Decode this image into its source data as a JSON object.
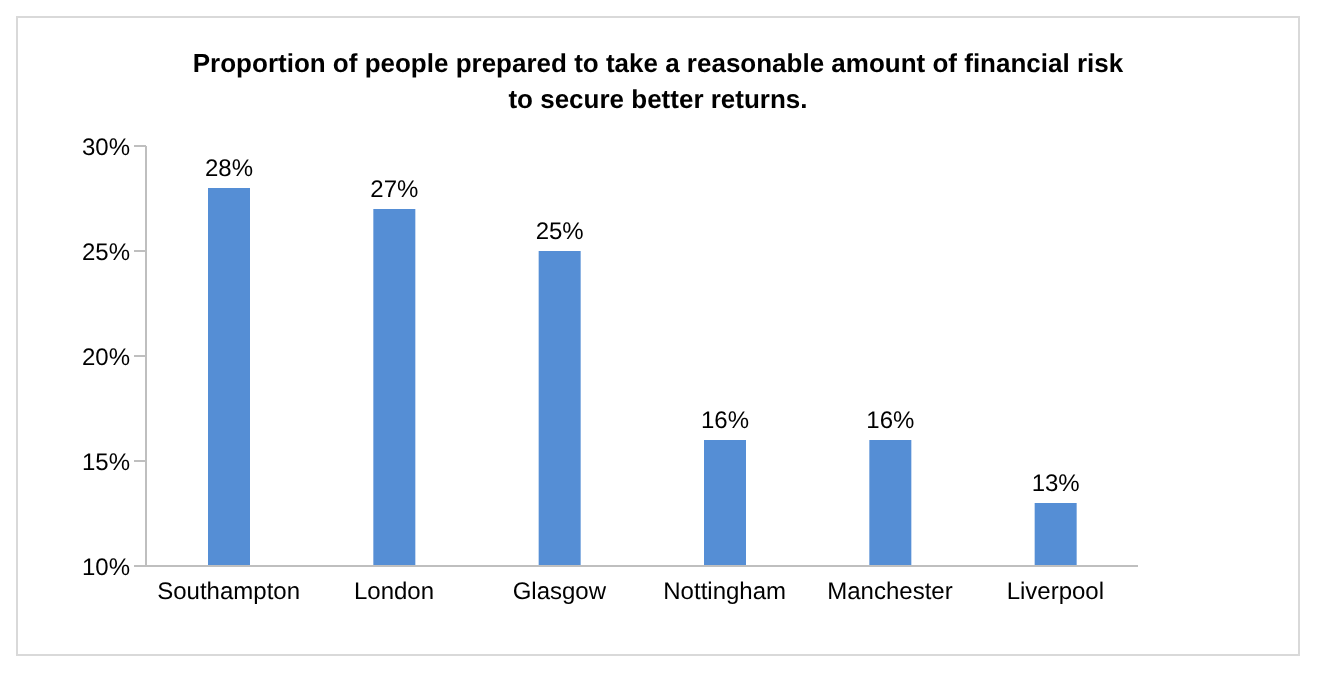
{
  "chart_data": {
    "type": "bar",
    "title": "Proportion of people prepared to take a reasonable amount of financial risk to secure better returns.",
    "categories": [
      "Southampton",
      "London",
      "Glasgow",
      "Nottingham",
      "Manchester",
      "Liverpool"
    ],
    "values": [
      28,
      27,
      25,
      16,
      16,
      13
    ],
    "value_labels": [
      "28%",
      "27%",
      "25%",
      "16%",
      "16%",
      "13%"
    ],
    "color": "#558ed5",
    "ylim": [
      10,
      30
    ],
    "yticks": [
      {
        "value": 10,
        "label": "10%"
      },
      {
        "value": 15,
        "label": "15%"
      },
      {
        "value": 20,
        "label": "20%"
      },
      {
        "value": 25,
        "label": "25%"
      },
      {
        "value": 30,
        "label": "30%"
      }
    ],
    "grid": false,
    "legend": false
  }
}
